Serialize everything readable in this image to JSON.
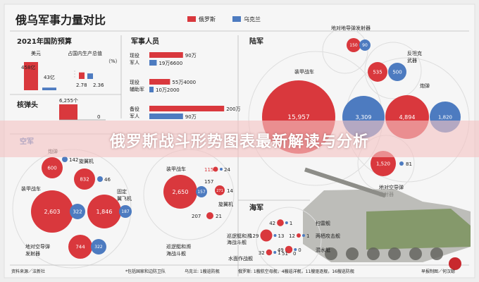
{
  "chart_data": {
    "type": "bar",
    "title": "俄乌军事力量对比",
    "legend": {
      "position": "top-right",
      "entries": [
        {
          "label": "俄罗斯",
          "color": "#d9383d"
        },
        {
          "label": "乌克兰",
          "color": "#4d7bc0"
        }
      ]
    },
    "budget": {
      "title": "2021年国防预算",
      "usd": {
        "label": "美元",
        "russia": 458,
        "ukraine": 43,
        "russia_text": "458亿",
        "ukraine_text": "43亿"
      },
      "gdp": {
        "label": "占国内生产总值",
        "unit": "（%）",
        "russia": 2.78,
        "ukraine": 2.36,
        "russia_text": "2.78",
        "ukraine_text": "2.36"
      }
    },
    "personnel": {
      "title": "军事人员",
      "rows": [
        {
          "label": "现役军人",
          "russia": 900000,
          "ukraine": 196600,
          "russia_text": "90万",
          "ukraine_text": "19万6600"
        },
        {
          "label": "现役辅助军",
          "russia": 554000,
          "ukraine": 102000,
          "russia_text": "55万4000",
          "ukraine_text": "10万2000"
        },
        {
          "label": "备役军人",
          "russia": 2000000,
          "ukraine": 900000,
          "russia_text": "200万",
          "ukraine_text": "90万"
        }
      ]
    },
    "nuclear": {
      "title": "核弹头",
      "russia": 6255,
      "ukraine": 0,
      "russia_text": "6,255个",
      "ukraine_text": "0"
    },
    "land": {
      "title": "陆军",
      "categories": [
        {
          "label": "装甲战车",
          "russia": 15957,
          "ukraine": 3309,
          "russia_text": "15,957",
          "ukraine_text": "3,309"
        },
        {
          "label": "炮弹",
          "russia": 4894,
          "ukraine": 1820,
          "russia_text": "4,894",
          "ukraine_text": "1,820"
        },
        {
          "label": "地对地导弹发射器",
          "russia": 150,
          "ukraine": 90,
          "russia_text": "150",
          "ukraine_text": "90"
        },
        {
          "label": "反坦克武器",
          "russia": 535,
          "ukraine": 500,
          "russia_text": "535",
          "ukraine_text": "500"
        },
        {
          "label": "地对空导弹发射器",
          "russia": 1520,
          "ukraine": 81,
          "russia_text": "1,520",
          "ukraine_text": "81"
        }
      ]
    },
    "air": {
      "title": "空军",
      "categories": [
        {
          "label": "炮弹",
          "russia": 600,
          "ukraine": 142,
          "russia_text": "600",
          "ukraine_text": "142"
        },
        {
          "label": "旋翼机",
          "russia": 832,
          "ukraine": 46,
          "russia_text": "832",
          "ukraine_text": "46"
        },
        {
          "label": "装甲战车",
          "russia": 2603,
          "ukraine": 322,
          "russia_text": "2,603",
          "ukraine_text": "322"
        },
        {
          "label": "固定翼飞机",
          "russia": 1846,
          "ukraine": 187,
          "russia_text": "1,846",
          "ukraine_text": "187"
        },
        {
          "label": "地对空导弹发射器",
          "russia": 744,
          "ukraine": 322,
          "russia_text": "744",
          "ukraine_text": "322"
        }
      ]
    },
    "special": {
      "categories": [
        {
          "label": "装甲战车",
          "russia": 2650,
          "ukraine": 157,
          "russia_text": "2,650",
          "ukraine_text": "157"
        },
        {
          "label": "旋翼机",
          "russia": 115,
          "ukraine": 24,
          "russia_text": "115",
          "ukraine_text": "24"
        },
        {
          "label": "旋翼机",
          "russia": 271,
          "ukraine": 14,
          "russia_text": "271",
          "ukraine_text": "14"
        },
        {
          "label": "巡逻艇和濒海战斗舰",
          "russia": 207,
          "ukraine": 21,
          "russia_text": "207",
          "ukraine_text": "21"
        }
      ]
    },
    "navy": {
      "title": "海军",
      "categories": [
        {
          "label": "扫雷舰",
          "russia": 42,
          "ukraine": 1,
          "russia_text": "42",
          "ukraine_text": "1"
        },
        {
          "label": "两栖攻击舰",
          "russia": 12,
          "ukraine": 1,
          "russia_text": "12",
          "ukraine_text": "1"
        },
        {
          "label": "巡逻艇和濒海战斗舰",
          "russia": 129,
          "ukraine": 13,
          "russia_text": "129",
          "ukraine_text": "13"
        },
        {
          "label": "潜水艇",
          "russia": 49,
          "ukraine": 0,
          "russia_text": "49",
          "ukraine_text": "0"
        },
        {
          "label": "水面作战舰",
          "russia": 32,
          "ukraine": 1,
          "russia_text": "32",
          "ukraine_text": "1"
        },
        {
          "label": "",
          "russia": 51,
          "ukraine": 0,
          "russia_text": "51",
          "ukraine_text": "0"
        }
      ]
    },
    "footer": {
      "source": "资料来源／法新社",
      "note_left": "*包括国家和边防卫队",
      "note_ukraine": "乌克兰: 1艘巡防舰",
      "note_russia": "俄罗斯: 1艘航空母舰，4艘巡洋舰，11艘驱逐舰，16艘巡防舰",
      "credit": "早报制图／何汉聪"
    }
  },
  "banner": {
    "text": "俄罗斯战斗形势图表最新解读与分析"
  }
}
